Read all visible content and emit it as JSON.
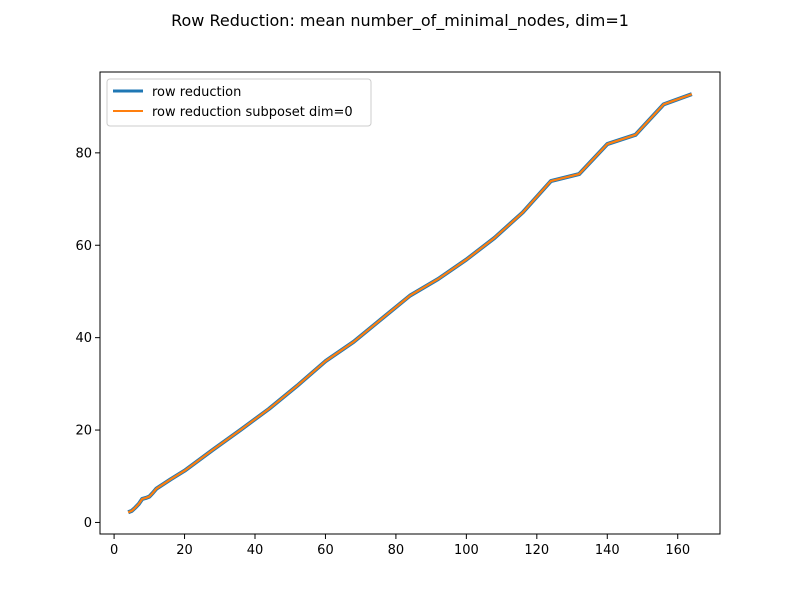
{
  "chart_data": {
    "type": "line",
    "title": "Row Reduction: mean number_of_minimal_nodes, dim=1",
    "xlabel": "",
    "ylabel": "",
    "xlim": [
      -4,
      172
    ],
    "ylim": [
      -2.5,
      97.5
    ],
    "xticks": [
      0,
      20,
      40,
      60,
      80,
      100,
      120,
      140,
      160
    ],
    "yticks": [
      0,
      20,
      40,
      60,
      80
    ],
    "grid": false,
    "legend_position": "upper left",
    "series": [
      {
        "name": "row reduction",
        "color": "#1f77b4",
        "x": [
          4,
          5,
          6,
          7,
          8,
          9,
          10,
          11,
          12,
          16,
          20,
          28,
          36,
          44,
          52,
          60,
          68,
          76,
          84,
          92,
          100,
          108,
          116,
          124,
          132,
          140,
          148,
          156,
          164
        ],
        "y": [
          2.2,
          2.5,
          3.2,
          4.0,
          5.1,
          5.3,
          5.6,
          6.4,
          7.3,
          9.3,
          11.2,
          15.7,
          20.1,
          24.6,
          29.6,
          34.9,
          39.1,
          44.1,
          49.1,
          52.7,
          56.9,
          61.6,
          67.1,
          73.9,
          75.4,
          81.9,
          83.9,
          90.5,
          92.7
        ]
      },
      {
        "name": "row reduction subposet dim=0",
        "color": "#ff7f0e",
        "x": [
          4,
          5,
          6,
          7,
          8,
          9,
          10,
          11,
          12,
          16,
          20,
          28,
          36,
          44,
          52,
          60,
          68,
          76,
          84,
          92,
          100,
          108,
          116,
          124,
          132,
          140,
          148,
          156,
          164
        ],
        "y": [
          2.2,
          2.5,
          3.2,
          4.0,
          5.1,
          5.3,
          5.6,
          6.4,
          7.3,
          9.3,
          11.2,
          15.7,
          20.1,
          24.6,
          29.6,
          34.9,
          39.1,
          44.1,
          49.1,
          52.7,
          56.9,
          61.6,
          67.1,
          73.9,
          75.4,
          81.9,
          83.9,
          90.5,
          92.7
        ]
      }
    ]
  }
}
